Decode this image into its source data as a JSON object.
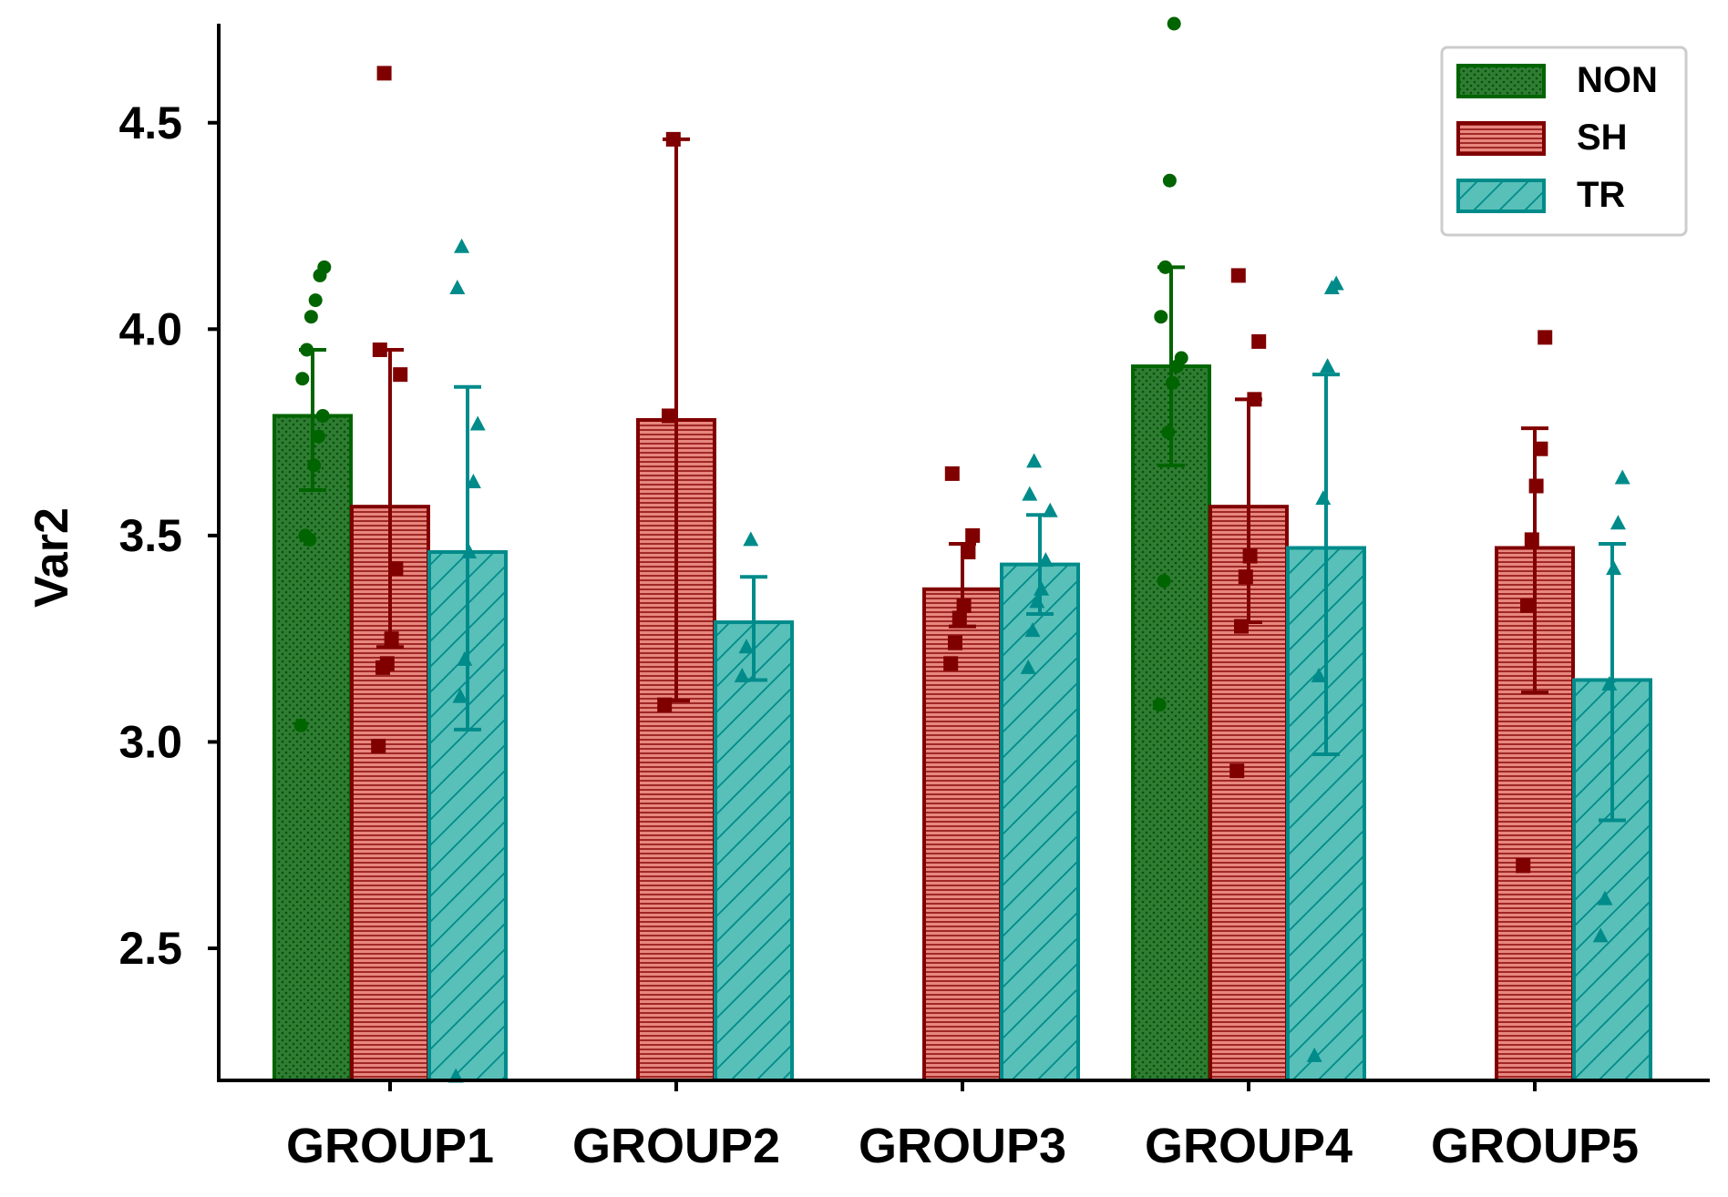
{
  "chart_data": {
    "type": "bar",
    "categories": [
      "GROUP1",
      "GROUP2",
      "GROUP3",
      "GROUP4",
      "GROUP5"
    ],
    "ylabel": "Var2",
    "xlabel": "",
    "ylim": [
      2.18,
      4.74
    ],
    "yticks": [
      2.5,
      3.0,
      3.5,
      4.0,
      4.5
    ],
    "ytick_labels": [
      "2.5",
      "3.0",
      "3.5",
      "4.0",
      "4.5"
    ],
    "legend_position": "top-right",
    "series": [
      {
        "name": "NON",
        "fill": "#2e7d32",
        "edge": "#006400",
        "pattern": "dots",
        "marker": "circle",
        "values": [
          3.79,
          null,
          null,
          3.91,
          null
        ],
        "err_low": [
          3.61,
          null,
          null,
          3.67,
          null
        ],
        "err_high": [
          3.95,
          null,
          null,
          4.15,
          null
        ],
        "points": [
          [
            3.04,
            3.5,
            3.49,
            3.67,
            3.74,
            3.79,
            3.88,
            3.95,
            4.03,
            4.07,
            4.13,
            4.15
          ],
          [],
          [],
          [
            3.09,
            3.39,
            3.75,
            3.87,
            3.91,
            3.93,
            4.03,
            4.15,
            4.36,
            4.74
          ],
          []
        ]
      },
      {
        "name": "SH",
        "fill": "#e8877f",
        "edge": "#800000",
        "pattern": "hlines",
        "marker": "square",
        "values": [
          3.57,
          3.78,
          3.37,
          3.57,
          3.47
        ],
        "err_low": [
          3.23,
          3.1,
          3.28,
          3.29,
          3.12
        ],
        "err_high": [
          3.95,
          4.46,
          3.48,
          3.83,
          3.76
        ],
        "points": [
          [
            2.99,
            3.18,
            3.19,
            3.25,
            3.42,
            3.89,
            3.95,
            4.62
          ],
          [
            3.09,
            3.79,
            4.46
          ],
          [
            3.19,
            3.24,
            3.3,
            3.33,
            3.46,
            3.5,
            3.65
          ],
          [
            2.93,
            3.28,
            3.4,
            3.45,
            3.83,
            3.97,
            4.13
          ],
          [
            2.7,
            3.33,
            3.49,
            3.62,
            3.71,
            3.98
          ]
        ]
      },
      {
        "name": "TR",
        "fill": "#58c0b8",
        "edge": "#008b8b",
        "pattern": "diag",
        "marker": "triangle",
        "values": [
          3.46,
          3.29,
          3.43,
          3.47,
          3.15
        ],
        "err_low": [
          3.03,
          3.15,
          3.31,
          2.97,
          2.81
        ],
        "err_high": [
          3.86,
          3.4,
          3.55,
          3.89,
          3.48
        ],
        "points": [
          [
            2.19,
            3.11,
            3.2,
            3.46,
            3.63,
            3.77,
            4.1,
            4.2
          ],
          [
            3.16,
            3.23,
            3.49
          ],
          [
            3.18,
            3.27,
            3.34,
            3.37,
            3.44,
            3.56,
            3.6,
            3.68
          ],
          [
            2.24,
            3.16,
            3.59,
            3.91,
            4.1,
            4.11
          ],
          [
            2.53,
            2.62,
            3.14,
            3.42,
            3.53,
            3.64
          ]
        ]
      }
    ]
  }
}
